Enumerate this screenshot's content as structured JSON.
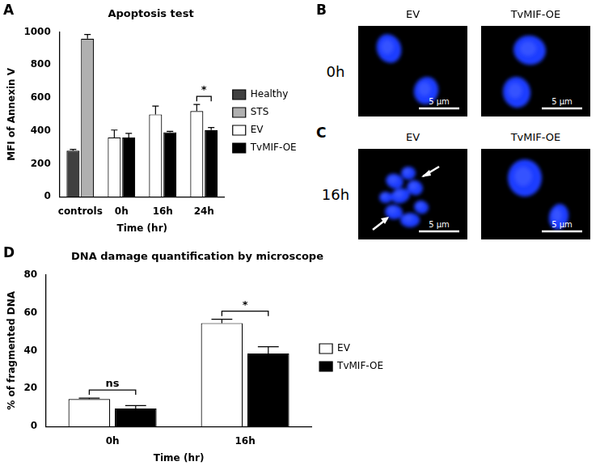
{
  "chart_data": [
    {
      "panel": "A",
      "type": "bar",
      "title": "Apoptosis test",
      "x_label": "Time (hr)",
      "y_label": "MFI of Annexin V",
      "categories": [
        "controls",
        "0h",
        "16h",
        "24h"
      ],
      "series": [
        {
          "name": "Healthy",
          "color": "#404040",
          "values": [
            280,
            null,
            null,
            null
          ],
          "errors": [
            8,
            null,
            null,
            null
          ]
        },
        {
          "name": "STS",
          "color": "#b0b0b0",
          "values": [
            960,
            null,
            null,
            null
          ],
          "errors": [
            25,
            null,
            null,
            null
          ]
        },
        {
          "name": "EV",
          "color": "#ffffff",
          "values": [
            null,
            360,
            500,
            520
          ],
          "errors": [
            null,
            45,
            50,
            40
          ]
        },
        {
          "name": "TvMIF-OE",
          "color": "#000000",
          "values": [
            null,
            360,
            392,
            405
          ],
          "errors": [
            null,
            25,
            5,
            15
          ]
        }
      ],
      "ylim": [
        0,
        1000
      ],
      "yticks": [
        0,
        200,
        400,
        600,
        800,
        1000
      ],
      "grid": false,
      "legend": "right",
      "annotations": [
        {
          "category": "24h",
          "text": "*"
        }
      ]
    },
    {
      "panel": "D",
      "type": "bar",
      "title": "DNA damage quantification by microscope",
      "x_label": "Time (hr)",
      "y_label": "% of fragmented DNA",
      "categories": [
        "0h",
        "16h"
      ],
      "series": [
        {
          "name": "EV",
          "color": "#ffffff",
          "values": [
            14.5,
            54.5
          ],
          "errors": [
            0.5,
            2
          ]
        },
        {
          "name": "TvMIF-OE",
          "color": "#000000",
          "values": [
            9.5,
            38.5
          ],
          "errors": [
            1.5,
            3.5
          ]
        }
      ],
      "ylim": [
        0,
        80
      ],
      "yticks": [
        0,
        20,
        40,
        60,
        80
      ],
      "grid": false,
      "legend": "right",
      "annotations": [
        {
          "category": "0h",
          "text": "ns"
        },
        {
          "category": "16h",
          "text": "*"
        }
      ]
    }
  ],
  "micrographs": {
    "columns": [
      "EV",
      "TvMIF-OE"
    ],
    "panels": [
      {
        "letter": "B",
        "row": "0h"
      },
      {
        "letter": "C",
        "row": "16h"
      }
    ],
    "scale_bar": "5 µm"
  }
}
